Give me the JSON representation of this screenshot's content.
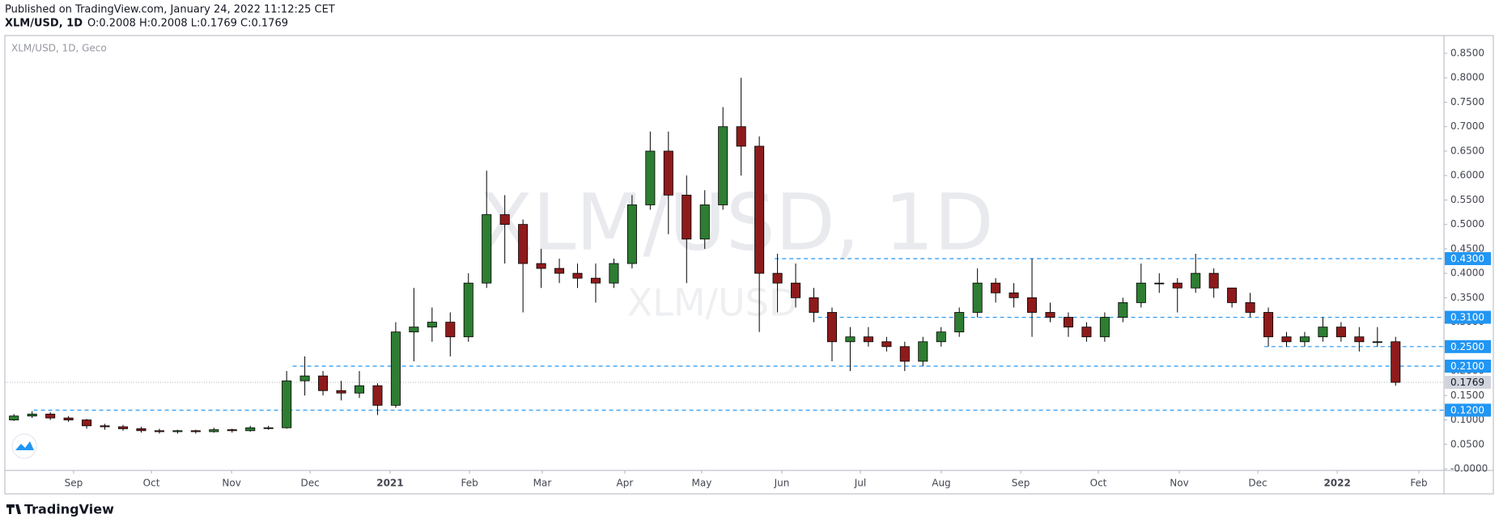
{
  "header": {
    "published": "Published on TradingView.com, January 24, 2022 11:12:25 CET",
    "symbol": "XLM/USD, 1D",
    "ohlc": "O:0.2008 H:0.2008 L:0.1769 C:0.1769"
  },
  "chart_data": {
    "type": "candlestick",
    "legend": "XLM/USD, 1D, Geco",
    "watermark": "XLM/USD, 1D",
    "watermark_sub": "XLM/USD",
    "up_color": "#2e7d32",
    "down_color": "#8e1b1b",
    "wick_color": "#000000",
    "level_color": "#2196f3",
    "grid": false,
    "xlim": [
      -0.5,
      78.66
    ],
    "ylim": [
      -0.0033,
      0.8864
    ],
    "xticks": [
      {
        "value": 3.28,
        "label": "Sep"
      },
      {
        "value": 7.56,
        "label": "Oct"
      },
      {
        "value": 11.97,
        "label": "Nov"
      },
      {
        "value": 16.29,
        "label": "Dec"
      },
      {
        "value": 20.69,
        "label": "2021"
      },
      {
        "value": 25.06,
        "label": "Feb"
      },
      {
        "value": 29.06,
        "label": "Mar"
      },
      {
        "value": 33.6,
        "label": "Apr"
      },
      {
        "value": 37.83,
        "label": "May"
      },
      {
        "value": 42.24,
        "label": "Jun"
      },
      {
        "value": 46.56,
        "label": "Jul"
      },
      {
        "value": 51.01,
        "label": "Aug"
      },
      {
        "value": 55.38,
        "label": "Sep"
      },
      {
        "value": 59.65,
        "label": "Oct"
      },
      {
        "value": 64.1,
        "label": "Nov"
      },
      {
        "value": 68.42,
        "label": "Dec"
      },
      {
        "value": 72.79,
        "label": "2022"
      },
      {
        "value": 77.28,
        "label": "Feb"
      }
    ],
    "yticks": [
      {
        "value": 0.85,
        "label": "0.8500"
      },
      {
        "value": 0.8,
        "label": "0.8000"
      },
      {
        "value": 0.75,
        "label": "0.7500"
      },
      {
        "value": 0.7,
        "label": "0.7000"
      },
      {
        "value": 0.65,
        "label": "0.6500"
      },
      {
        "value": 0.6,
        "label": "0.6000"
      },
      {
        "value": 0.55,
        "label": "0.5500"
      },
      {
        "value": 0.5,
        "label": "0.5000"
      },
      {
        "value": 0.45,
        "label": "0.4500"
      },
      {
        "value": 0.4,
        "label": "0.4000"
      },
      {
        "value": 0.35,
        "label": "0.3500"
      },
      {
        "value": 0.3,
        "label": "0.3000"
      },
      {
        "value": 0.25,
        "label": "0.2500"
      },
      {
        "value": 0.2,
        "label": "0.2000"
      },
      {
        "value": 0.15,
        "label": "0.1500"
      },
      {
        "value": 0.1,
        "label": "0.1000"
      },
      {
        "value": 0.05,
        "label": "0.0500"
      },
      {
        "value": 0,
        "label": "-0.0000"
      }
    ],
    "levels": [
      {
        "value": 0.43,
        "label": "0.4300"
      },
      {
        "value": 0.31,
        "label": "0.3100"
      },
      {
        "value": 0.25,
        "label": "0.2500"
      },
      {
        "value": 0.21,
        "label": "0.2100"
      },
      {
        "value": 0.12,
        "label": "0.1200"
      }
    ],
    "last": {
      "value": 0.1769,
      "label": "0.1769"
    },
    "open": [
      0.1,
      0.108,
      0.112,
      0.104,
      0.1,
      0.088,
      0.086,
      0.082,
      0.078,
      0.076,
      0.078,
      0.076,
      0.08,
      0.078,
      0.084,
      0.084,
      0.18,
      0.19,
      0.16,
      0.155,
      0.17,
      0.13,
      0.28,
      0.29,
      0.3,
      0.27,
      0.38,
      0.52,
      0.5,
      0.42,
      0.41,
      0.4,
      0.39,
      0.38,
      0.42,
      0.54,
      0.65,
      0.56,
      0.47,
      0.54,
      0.7,
      0.66,
      0.4,
      0.38,
      0.35,
      0.32,
      0.26,
      0.27,
      0.26,
      0.25,
      0.22,
      0.26,
      0.28,
      0.32,
      0.38,
      0.36,
      0.35,
      0.32,
      0.31,
      0.29,
      0.27,
      0.31,
      0.34,
      0.38,
      0.38,
      0.37,
      0.4,
      0.37,
      0.34,
      0.32,
      0.27,
      0.26,
      0.27,
      0.29,
      0.27,
      0.26,
      0.26
    ],
    "high": [
      0.112,
      0.118,
      0.116,
      0.108,
      0.102,
      0.092,
      0.09,
      0.086,
      0.082,
      0.08,
      0.08,
      0.084,
      0.082,
      0.088,
      0.088,
      0.2,
      0.23,
      0.2,
      0.18,
      0.2,
      0.175,
      0.3,
      0.37,
      0.33,
      0.32,
      0.4,
      0.61,
      0.56,
      0.51,
      0.45,
      0.43,
      0.42,
      0.42,
      0.43,
      0.56,
      0.69,
      0.69,
      0.6,
      0.57,
      0.74,
      0.8,
      0.68,
      0.44,
      0.42,
      0.37,
      0.33,
      0.29,
      0.29,
      0.27,
      0.26,
      0.27,
      0.29,
      0.33,
      0.41,
      0.39,
      0.38,
      0.43,
      0.34,
      0.32,
      0.3,
      0.32,
      0.35,
      0.42,
      0.4,
      0.39,
      0.44,
      0.41,
      0.37,
      0.36,
      0.33,
      0.28,
      0.28,
      0.31,
      0.3,
      0.29,
      0.29,
      0.27
    ],
    "low": [
      0.098,
      0.104,
      0.1,
      0.096,
      0.082,
      0.08,
      0.078,
      0.074,
      0.072,
      0.072,
      0.072,
      0.074,
      0.074,
      0.076,
      0.08,
      0.082,
      0.15,
      0.15,
      0.14,
      0.145,
      0.11,
      0.125,
      0.22,
      0.26,
      0.23,
      0.26,
      0.37,
      0.42,
      0.32,
      0.37,
      0.38,
      0.37,
      0.34,
      0.37,
      0.41,
      0.53,
      0.48,
      0.38,
      0.45,
      0.53,
      0.6,
      0.28,
      0.32,
      0.33,
      0.3,
      0.22,
      0.2,
      0.25,
      0.24,
      0.2,
      0.21,
      0.25,
      0.27,
      0.31,
      0.34,
      0.33,
      0.27,
      0.3,
      0.27,
      0.26,
      0.26,
      0.3,
      0.33,
      0.36,
      0.32,
      0.36,
      0.35,
      0.33,
      0.31,
      0.25,
      0.25,
      0.25,
      0.26,
      0.26,
      0.24,
      0.25,
      0.17
    ],
    "close": [
      0.108,
      0.112,
      0.104,
      0.1,
      0.088,
      0.086,
      0.082,
      0.078,
      0.076,
      0.078,
      0.076,
      0.08,
      0.078,
      0.084,
      0.084,
      0.18,
      0.19,
      0.16,
      0.155,
      0.17,
      0.13,
      0.28,
      0.29,
      0.3,
      0.27,
      0.38,
      0.52,
      0.5,
      0.42,
      0.41,
      0.4,
      0.39,
      0.38,
      0.42,
      0.54,
      0.65,
      0.56,
      0.47,
      0.54,
      0.7,
      0.66,
      0.4,
      0.38,
      0.35,
      0.32,
      0.26,
      0.27,
      0.26,
      0.25,
      0.22,
      0.26,
      0.28,
      0.32,
      0.38,
      0.36,
      0.35,
      0.32,
      0.31,
      0.29,
      0.27,
      0.31,
      0.34,
      0.38,
      0.38,
      0.37,
      0.4,
      0.37,
      0.34,
      0.32,
      0.27,
      0.26,
      0.27,
      0.29,
      0.27,
      0.26,
      0.26,
      0.1769
    ]
  },
  "footer": {
    "brand": "TradingView"
  }
}
